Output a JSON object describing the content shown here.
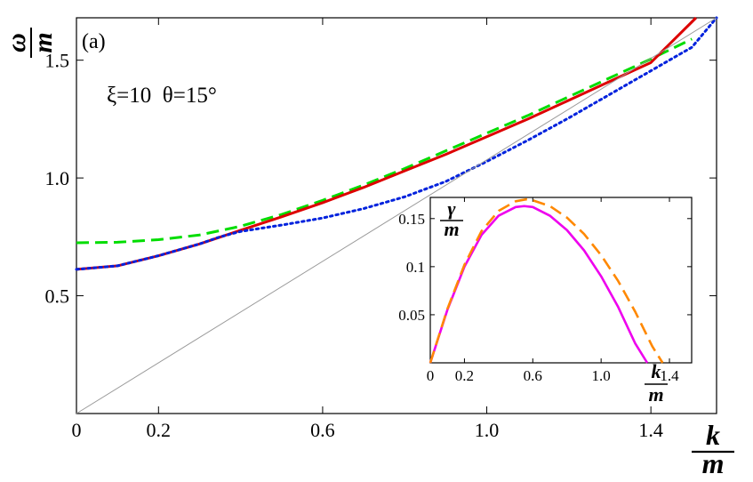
{
  "chart_data": [
    {
      "type": "line",
      "panel_label": "(a)",
      "annotation": "ξ=10  θ=15°",
      "xlabel": {
        "numerator": "k",
        "denominator": "m"
      },
      "ylabel": {
        "numerator": "ω",
        "denominator": "m"
      },
      "xlim": [
        0,
        1.56
      ],
      "ylim": [
        0,
        1.68
      ],
      "xticks": [
        0,
        0.2,
        0.6,
        1.0,
        1.4
      ],
      "xtick_labels": [
        "0",
        "0.2",
        "0.6",
        "1.0",
        "1.4"
      ],
      "yticks": [
        0.5,
        1.0,
        1.5
      ],
      "ytick_labels": [
        "0.5",
        "1.0",
        "1.5"
      ],
      "grid": false,
      "legend": "none",
      "series": [
        {
          "color": "#00dd00",
          "style": "dashed",
          "x": [
            0,
            0.1,
            0.2,
            0.3,
            0.4,
            0.5,
            0.6,
            0.7,
            0.8,
            0.9,
            1.0,
            1.1,
            1.2,
            1.3,
            1.4,
            1.5
          ],
          "y": [
            0.725,
            0.727,
            0.738,
            0.758,
            0.795,
            0.845,
            0.905,
            0.97,
            1.04,
            1.115,
            1.19,
            1.265,
            1.345,
            1.425,
            1.505,
            1.59
          ]
        },
        {
          "color": "#dd0000",
          "style": "solid",
          "x": [
            0,
            0.1,
            0.2,
            0.3,
            0.4,
            0.5,
            0.6,
            0.7,
            0.8,
            0.9,
            1.0,
            1.1,
            1.2,
            1.3,
            1.4,
            1.51
          ],
          "y": [
            0.612,
            0.627,
            0.67,
            0.72,
            0.778,
            0.835,
            0.895,
            0.96,
            1.03,
            1.1,
            1.175,
            1.25,
            1.33,
            1.41,
            1.49,
            1.68
          ]
        },
        {
          "color": "#0022dd",
          "style": "dotted",
          "x": [
            0,
            0.1,
            0.2,
            0.3,
            0.35,
            0.4,
            0.5,
            0.6,
            0.7,
            0.8,
            0.9,
            1.0,
            1.1,
            1.2,
            1.3,
            1.4,
            1.5,
            1.56
          ],
          "y": [
            0.612,
            0.627,
            0.67,
            0.72,
            0.75,
            0.773,
            0.8,
            0.83,
            0.87,
            0.92,
            0.985,
            1.07,
            1.16,
            1.255,
            1.355,
            1.455,
            1.555,
            1.68
          ]
        },
        {
          "color": "#999999",
          "style": "solid",
          "x": [
            0,
            1.56
          ],
          "y": [
            0,
            1.68
          ]
        }
      ]
    },
    {
      "type": "line",
      "panel_label": "inset",
      "xlabel": {
        "numerator": "k",
        "denominator": "m"
      },
      "ylabel": {
        "numerator": "γ",
        "denominator": "m"
      },
      "xlim": [
        0,
        1.53
      ],
      "ylim": [
        0,
        0.172
      ],
      "xticks": [
        0,
        0.2,
        0.6,
        1.0,
        1.4
      ],
      "xtick_labels": [
        "0",
        "0.2",
        "0.6",
        "1.0",
        "1.4"
      ],
      "yticks": [
        0.05,
        0.1,
        0.15
      ],
      "ytick_labels": [
        "0.05",
        "0.1",
        "0.15"
      ],
      "grid": false,
      "legend": "none",
      "series": [
        {
          "color": "#ee00ee",
          "style": "solid",
          "x": [
            0,
            0.1,
            0.2,
            0.3,
            0.4,
            0.5,
            0.55,
            0.6,
            0.7,
            0.8,
            0.9,
            1.0,
            1.1,
            1.2,
            1.27
          ],
          "y": [
            0,
            0.055,
            0.1,
            0.133,
            0.153,
            0.162,
            0.163,
            0.162,
            0.153,
            0.138,
            0.117,
            0.09,
            0.058,
            0.02,
            0
          ]
        },
        {
          "color": "#ff8800",
          "style": "dashed",
          "x": [
            0,
            0.1,
            0.2,
            0.3,
            0.4,
            0.5,
            0.56,
            0.6,
            0.7,
            0.8,
            0.9,
            1.0,
            1.1,
            1.2,
            1.3,
            1.36
          ],
          "y": [
            0,
            0.056,
            0.102,
            0.137,
            0.158,
            0.168,
            0.17,
            0.169,
            0.163,
            0.151,
            0.134,
            0.112,
            0.085,
            0.053,
            0.017,
            0
          ]
        }
      ]
    }
  ]
}
